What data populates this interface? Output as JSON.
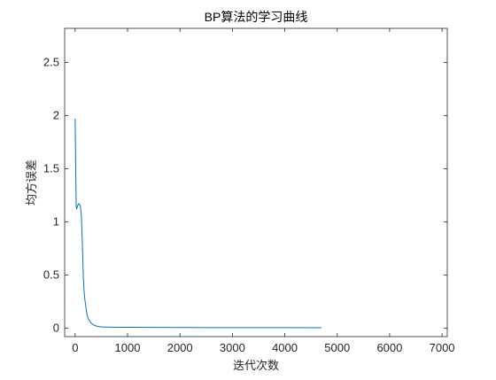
{
  "chart_data": {
    "type": "line",
    "title": "BP算法的学习曲线",
    "xlabel": "迭代次数",
    "ylabel": "均方误差",
    "xlim": [
      -200,
      7100
    ],
    "ylim": [
      -0.08,
      2.82
    ],
    "xticks": [
      0,
      1000,
      2000,
      3000,
      4000,
      5000,
      6000,
      7000
    ],
    "xtick_labels": [
      "0",
      "1000",
      "2000",
      "3000",
      "4000",
      "5000",
      "6000",
      "7000"
    ],
    "yticks": [
      0,
      0.5,
      1,
      1.5,
      2,
      2.5
    ],
    "ytick_labels": [
      "0",
      "0.5",
      "1",
      "1.5",
      "2",
      "2.5"
    ],
    "grid": false,
    "series": [
      {
        "color": "#0072BD",
        "x": [
          0,
          10,
          20,
          30,
          40,
          55,
          70,
          85,
          100,
          120,
          140,
          155,
          170,
          190,
          210,
          230,
          260,
          300,
          350,
          400,
          450,
          500,
          600,
          800,
          1000,
          1500,
          2000,
          3000,
          4000,
          4700
        ],
        "y": [
          1.97,
          1.55,
          1.15,
          1.12,
          1.14,
          1.16,
          1.17,
          1.16,
          1.15,
          1.05,
          0.75,
          0.5,
          0.35,
          0.25,
          0.18,
          0.12,
          0.08,
          0.05,
          0.03,
          0.02,
          0.015,
          0.012,
          0.01,
          0.008,
          0.007,
          0.006,
          0.005,
          0.004,
          0.004,
          0.003
        ]
      }
    ]
  }
}
